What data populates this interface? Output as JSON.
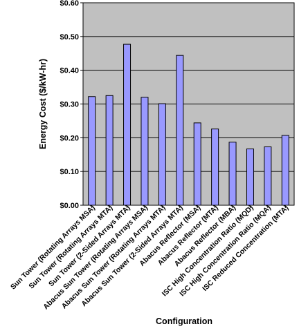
{
  "chart_data": {
    "type": "bar",
    "title": "",
    "xlabel": "Configuration",
    "ylabel": "Energy Cost ($/kW-hr)",
    "ylim": [
      0,
      0.6
    ],
    "yticks": [
      0.0,
      0.1,
      0.2,
      0.3,
      0.4,
      0.5,
      0.6
    ],
    "ytick_labels": [
      "$0.00",
      "$0.10",
      "$0.20",
      "$0.30",
      "$0.40",
      "$0.50",
      "$0.60"
    ],
    "grid": true,
    "legend": "none",
    "categories": [
      "Sun Tower (Rotating Arrays MSA)",
      "Sun Tower (Rotating Arrays MTA)",
      "Sun Tower (2-Sided Arrays MTA)",
      "Abacus Sun Tower (Rotating Arrays MSA)",
      "Abacus Sun Tower (Rotating Arrays MTA)",
      "Abacus Sun Tower (2-Sided Arrays MTA)",
      "Abacus Reflector (MSA)",
      "Abacus Reflector (MTA)",
      "Abacus Reflector (MBA)",
      "ISC High Concentration Ratio (MQD)",
      "ISC High Concentration Ratio (MQA)",
      "ISC Reduced Concentration (MTA)"
    ],
    "values": [
      0.322,
      0.325,
      0.477,
      0.32,
      0.301,
      0.444,
      0.244,
      0.226,
      0.187,
      0.167,
      0.173,
      0.207
    ],
    "colors": {
      "plot_background": "#c0c0c0",
      "bar_fill": "#9999ff",
      "bar_stroke": "#000000",
      "grid": "#000000",
      "axis": "#000000"
    }
  }
}
